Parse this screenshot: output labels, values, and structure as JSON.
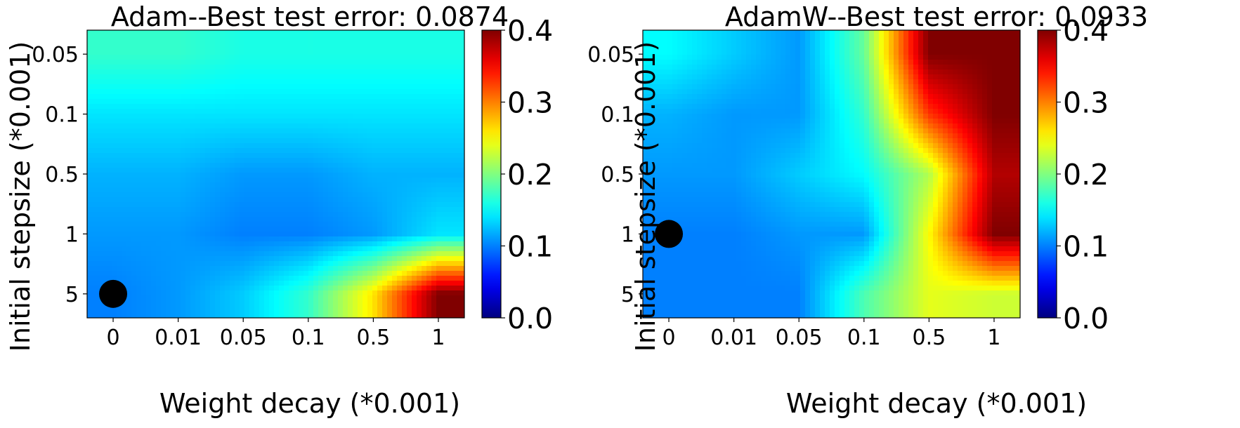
{
  "figure": {
    "colormap": "jet",
    "colorbar_ticks": [
      "0.0",
      "0.1",
      "0.2",
      "0.3",
      "0.4"
    ],
    "colorbar_range": [
      0.0,
      0.4
    ]
  },
  "chart_data": [
    {
      "type": "heatmap",
      "title": "Adam--Best test error: 0.0874",
      "xlabel": "Weight decay (*0.001)",
      "ylabel": "Initial stepsize (*0.001)",
      "x_categories": [
        "0",
        "0.01",
        "0.05",
        "0.1",
        "0.5",
        "1"
      ],
      "y_categories": [
        "0.05",
        "0.1",
        "0.5",
        "1",
        "5"
      ],
      "values": [
        [
          0.17,
          0.17,
          0.16,
          0.16,
          0.16,
          0.16
        ],
        [
          0.14,
          0.14,
          0.14,
          0.14,
          0.14,
          0.14
        ],
        [
          0.12,
          0.12,
          0.11,
          0.11,
          0.12,
          0.12
        ],
        [
          0.11,
          0.11,
          0.1,
          0.1,
          0.11,
          0.14
        ],
        [
          0.1,
          0.11,
          0.13,
          0.17,
          0.26,
          0.4
        ]
      ],
      "best": {
        "x": "0",
        "y": "5",
        "value": 0.0874
      },
      "clim": [
        0.0,
        0.4
      ]
    },
    {
      "type": "heatmap",
      "title": "AdamW--Best test error: 0.0933",
      "xlabel": "Weight decay (*0.001)",
      "ylabel": "Initial stepsize (*0.001)",
      "x_categories": [
        "0",
        "0.01",
        "0.05",
        "0.1",
        "0.5",
        "1"
      ],
      "y_categories": [
        "0.05",
        "0.1",
        "0.5",
        "1",
        "5"
      ],
      "values": [
        [
          0.15,
          0.13,
          0.11,
          0.19,
          0.4,
          0.4
        ],
        [
          0.12,
          0.11,
          0.11,
          0.17,
          0.33,
          0.4
        ],
        [
          0.11,
          0.11,
          0.13,
          0.15,
          0.22,
          0.38
        ],
        [
          0.1,
          0.1,
          0.11,
          0.11,
          0.25,
          0.4
        ],
        [
          0.1,
          0.1,
          0.1,
          0.18,
          0.24,
          0.23
        ]
      ],
      "best": {
        "x": "0",
        "y": "1",
        "value": 0.0933
      },
      "clim": [
        0.0,
        0.4
      ]
    }
  ]
}
